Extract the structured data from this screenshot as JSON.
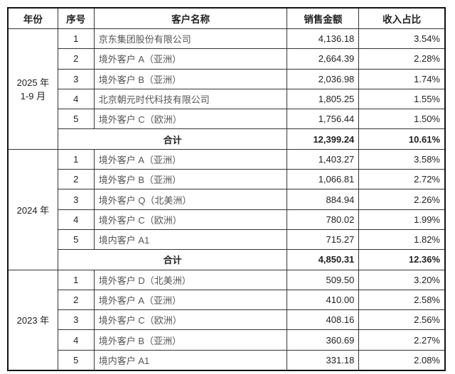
{
  "headers": [
    "年份",
    "序号",
    "客户名称",
    "销售金额",
    "收入占比"
  ],
  "groups": [
    {
      "year": "2025 年\n1-9 月",
      "rows": [
        [
          "1",
          "京东集团股份有限公司",
          "4,136.18",
          "3.54%"
        ],
        [
          "2",
          "境外客户 A（亚洲）",
          "2,664.39",
          "2.28%"
        ],
        [
          "3",
          "境外客户 B（亚洲）",
          "2,036.98",
          "1.74%"
        ],
        [
          "4",
          "北京朝元时代科技有限公司",
          "1,805.25",
          "1.55%"
        ],
        [
          "5",
          "境外客户 C（欧洲）",
          "1,756.44",
          "1.50%"
        ]
      ],
      "total": {
        "label": "合计",
        "amount": "12,399.24",
        "pct": "10.61%"
      }
    },
    {
      "year": "2024 年",
      "rows": [
        [
          "1",
          "境外客户 A（亚洲）",
          "1,403.27",
          "3.58%"
        ],
        [
          "2",
          "境外客户 B（亚洲）",
          "1,066.81",
          "2.72%"
        ],
        [
          "3",
          "境外客户 Q（北美洲）",
          "884.94",
          "2.26%"
        ],
        [
          "4",
          "境外客户 C（欧洲）",
          "780.02",
          "1.99%"
        ],
        [
          "5",
          "境内客户 A1",
          "715.27",
          "1.82%"
        ]
      ],
      "total": {
        "label": "合计",
        "amount": "4,850.31",
        "pct": "12.36%"
      }
    },
    {
      "year": "2023 年",
      "rows": [
        [
          "1",
          "境外客户 D（北美洲）",
          "509.50",
          "3.20%"
        ],
        [
          "2",
          "境外客户 A（亚洲）",
          "410.00",
          "2.58%"
        ],
        [
          "3",
          "境外客户 C（欧洲）",
          "408.16",
          "2.56%"
        ],
        [
          "4",
          "境外客户 B（亚洲）",
          "360.69",
          "2.27%"
        ],
        [
          "5",
          "境内客户 A1",
          "331.18",
          "2.08%"
        ]
      ]
    }
  ]
}
